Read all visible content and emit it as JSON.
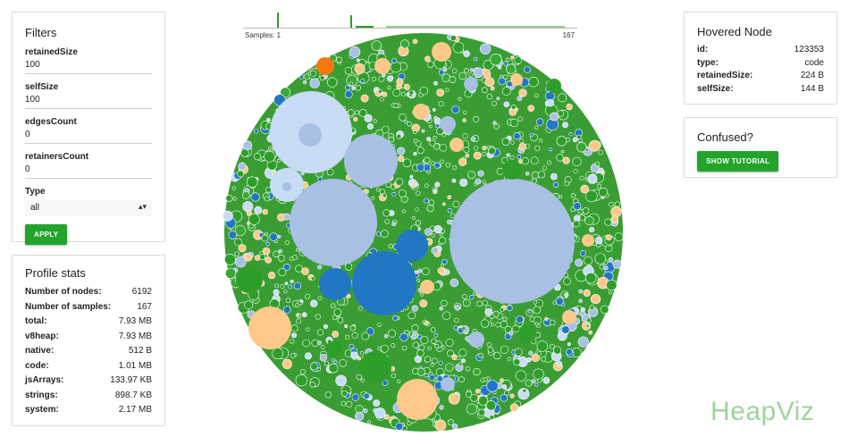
{
  "filters": {
    "title": "Filters",
    "retainedSize": {
      "label": "retainedSize",
      "value": "100"
    },
    "selfSize": {
      "label": "selfSize",
      "value": "100"
    },
    "edgesCount": {
      "label": "edgesCount",
      "value": "0"
    },
    "retainersCount": {
      "label": "retainersCount",
      "value": "0"
    },
    "type": {
      "label": "Type",
      "value": "all"
    },
    "apply_label": "APPLY"
  },
  "stats": {
    "title": "Profile stats",
    "rows": [
      {
        "key": "Number of nodes:",
        "value": "6192"
      },
      {
        "key": "Number of samples:",
        "value": "167"
      },
      {
        "key": "total:",
        "value": "7.93 MB"
      },
      {
        "key": "v8heap:",
        "value": "7.93 MB"
      },
      {
        "key": "native:",
        "value": "512 B"
      },
      {
        "key": "code:",
        "value": "1.01 MB"
      },
      {
        "key": "jsArrays:",
        "value": "133.97 KB"
      },
      {
        "key": "strings:",
        "value": "898.7 KB"
      },
      {
        "key": "system:",
        "value": "2.17 MB"
      }
    ]
  },
  "hovered": {
    "title": "Hovered Node",
    "rows": [
      {
        "key": "id:",
        "value": "123353"
      },
      {
        "key": "type:",
        "value": "code"
      },
      {
        "key": "retainedSize:",
        "value": "224 B"
      },
      {
        "key": "selfSize:",
        "value": "144 B"
      }
    ]
  },
  "confused": {
    "title": "Confused?",
    "tutorial_label": "SHOW TUTORIAL"
  },
  "histogram": {
    "start_label": "Samples: 1",
    "end_label": "167"
  },
  "colors": {
    "accent": "#22a32a",
    "green": "#2e9e2a",
    "blue": "#2277c4",
    "lightblue": "#a9c0e5",
    "orange": "#fdc98a",
    "darkorange": "#f5780f"
  },
  "logo": "HeapViz"
}
